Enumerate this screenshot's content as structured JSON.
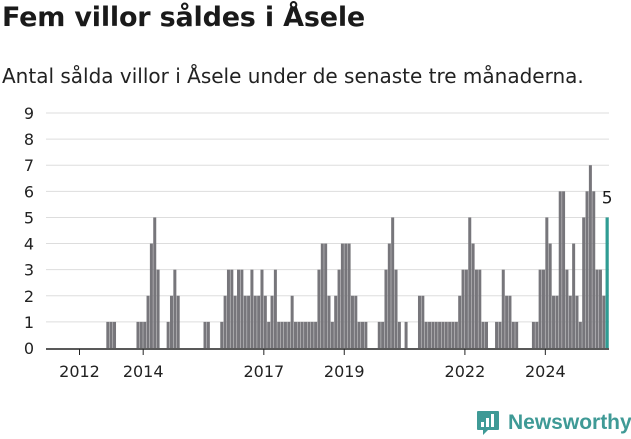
{
  "title": "Fem villor såldes i Åsele",
  "subtitle": "Antal sålda villor i Åsele under de senaste tre månaderna.",
  "brand": {
    "name": "Newsworthy",
    "icon": "newsworthy-logo-icon"
  },
  "colors": {
    "bar": "#77767b",
    "highlight": "#2f9c93",
    "grid": "#dddddd",
    "axis": "#222222",
    "brand": "#3f9a96"
  },
  "chart_data": {
    "type": "bar",
    "title": "Fem villor såldes i Åsele",
    "subtitle": "Antal sålda villor i Åsele under de senaste tre månaderna.",
    "ylim": [
      0,
      9
    ],
    "yticks": [
      0,
      1,
      2,
      3,
      4,
      5,
      6,
      7,
      8,
      9
    ],
    "xlim": [
      "2011-08",
      "2025-08"
    ],
    "xticks": [
      {
        "label": "2012",
        "at": "2012-06"
      },
      {
        "label": "2014",
        "at": "2014-01"
      },
      {
        "label": "2017",
        "at": "2017-01"
      },
      {
        "label": "2019",
        "at": "2019-01"
      },
      {
        "label": "2022",
        "at": "2022-01"
      },
      {
        "label": "2024",
        "at": "2024-01"
      }
    ],
    "grid": true,
    "start_month": "2011-08",
    "values": [
      0,
      0,
      0,
      0,
      0,
      0,
      0,
      0,
      0,
      0,
      0,
      0,
      0,
      0,
      0,
      0,
      0,
      0,
      1,
      1,
      1,
      0,
      0,
      0,
      0,
      0,
      0,
      1,
      1,
      1,
      2,
      4,
      5,
      3,
      0,
      0,
      1,
      2,
      3,
      2,
      0,
      0,
      0,
      0,
      0,
      0,
      0,
      1,
      1,
      0,
      0,
      0,
      1,
      2,
      3,
      3,
      2,
      3,
      3,
      2,
      2,
      3,
      2,
      2,
      3,
      2,
      1,
      2,
      3,
      1,
      1,
      1,
      1,
      2,
      1,
      1,
      1,
      1,
      1,
      1,
      1,
      3,
      4,
      4,
      2,
      1,
      2,
      3,
      4,
      4,
      4,
      2,
      2,
      1,
      1,
      1,
      0,
      0,
      0,
      1,
      1,
      3,
      4,
      5,
      3,
      1,
      0,
      1,
      0,
      0,
      0,
      2,
      2,
      1,
      1,
      1,
      1,
      1,
      1,
      1,
      1,
      1,
      1,
      2,
      3,
      3,
      5,
      4,
      3,
      3,
      1,
      1,
      0,
      0,
      1,
      1,
      3,
      2,
      2,
      1,
      1,
      0,
      0,
      0,
      0,
      1,
      1,
      3,
      3,
      5,
      4,
      2,
      2,
      6,
      6,
      3,
      2,
      4,
      2,
      1,
      5,
      6,
      7,
      6,
      3,
      3,
      2,
      5
    ],
    "highlight": {
      "month": "2025-07",
      "value": 5,
      "label": "5"
    }
  }
}
